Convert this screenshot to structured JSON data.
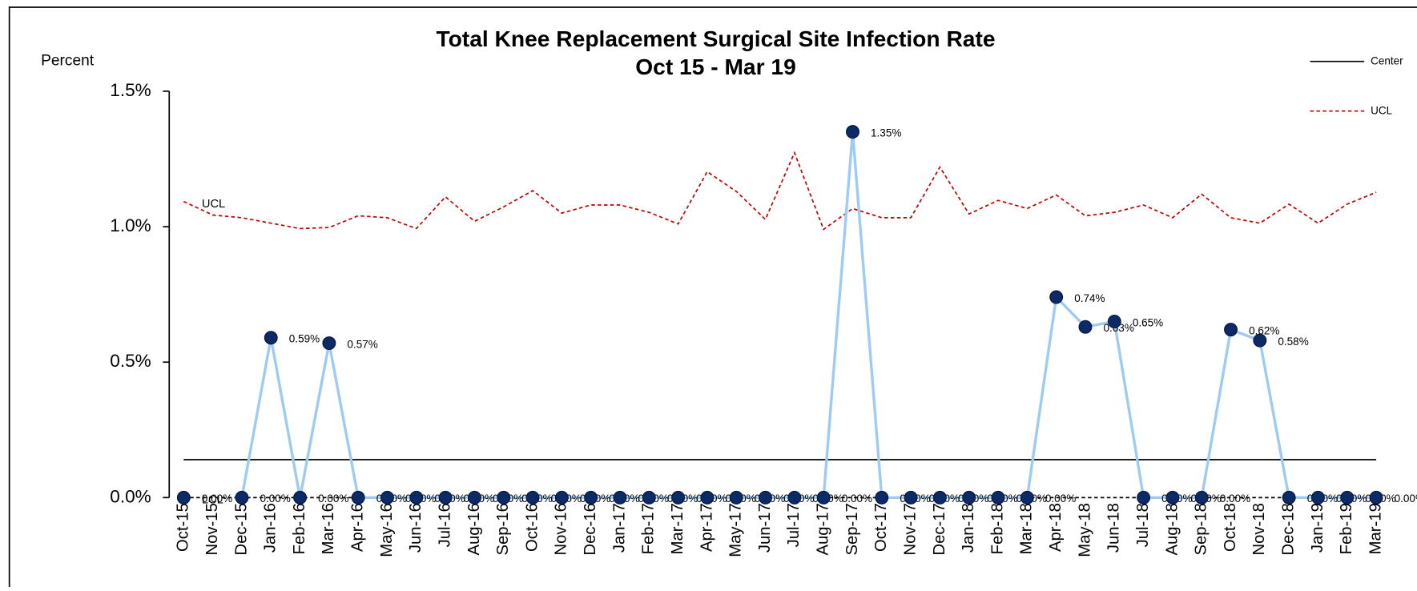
{
  "chart_data": {
    "type": "line",
    "title": "Total Knee Replacement Surgical Site Infection Rate",
    "subtitle": "Oct 15 - Mar 19",
    "ylabel": "Percent",
    "categories": [
      "Oct-15",
      "Nov-15",
      "Dec-15",
      "Jan-16",
      "Feb-16",
      "Mar-16",
      "Apr-16",
      "May-16",
      "Jun-16",
      "Jul-16",
      "Aug-16",
      "Sep-16",
      "Oct-16",
      "Nov-16",
      "Dec-16",
      "Jan-17",
      "Feb-17",
      "Mar-17",
      "Apr-17",
      "May-17",
      "Jun-17",
      "Jul-17",
      "Aug-17",
      "Sep-17",
      "Oct-17",
      "Nov-17",
      "Dec-17",
      "Jan-18",
      "Feb-18",
      "Mar-18",
      "Apr-18",
      "May-18",
      "Jun-18",
      "Jul-18",
      "Aug-18",
      "Sep-18",
      "Oct-18",
      "Nov-18",
      "Dec-18",
      "Jan-19",
      "Feb-19",
      "Mar-19"
    ],
    "values": [
      0,
      null,
      0,
      0.59,
      0,
      0.57,
      0,
      0,
      0,
      0,
      0,
      0,
      0,
      0,
      0,
      0,
      0,
      0,
      0,
      0,
      0,
      0,
      0,
      1.35,
      0,
      0,
      0,
      0,
      0,
      0,
      0.74,
      0.63,
      0.65,
      0,
      0,
      0,
      0.62,
      0.58,
      0,
      0,
      0,
      0
    ],
    "value_labels": [
      "0.00%",
      null,
      "0.00%",
      "0.59%",
      "0.00%",
      "0.57%",
      "0.00%",
      "0.00%",
      "0.00%",
      "0.00%",
      "0.00%",
      "0.00%",
      "0.00%",
      "0.00%",
      "0.00%",
      "0.00%",
      "0.00%",
      "0.00%",
      "0.00%",
      "0.00%",
      "0.00%",
      "0.00%",
      "0.00%",
      "1.35%",
      "0.00%",
      "0.00%",
      "0.00%",
      "0.00%",
      "0.00%",
      "0.00%",
      "0.74%",
      "0.63%",
      "0.65%",
      "0.00%",
      "0.00%",
      "0.00%",
      "0.62%",
      "0.58%",
      "0.00%",
      "0.00%",
      "0.00%",
      "0.00%"
    ],
    "color": "#9dcbf3",
    "marker_color": "#0b2a66",
    "series": [
      {
        "name": "Center",
        "color": "#000000",
        "dashed": false,
        "legend": true,
        "start_label": false,
        "values": [
          0.14,
          0.14,
          0.14,
          0.14,
          0.14,
          0.14,
          0.14,
          0.14,
          0.14,
          0.14,
          0.14,
          0.14,
          0.14,
          0.14,
          0.14,
          0.14,
          0.14,
          0.14,
          0.14,
          0.14,
          0.14,
          0.14,
          0.14,
          0.14,
          0.14,
          0.14,
          0.14,
          0.14,
          0.14,
          0.14,
          0.14,
          0.14,
          0.14,
          0.14,
          0.14,
          0.14,
          0.14,
          0.14,
          0.14,
          0.14,
          0.14,
          0.14
        ]
      },
      {
        "name": "UCL",
        "color": "#c00000",
        "dashed": true,
        "legend": true,
        "start_label": true,
        "values": [
          1.093,
          1.043,
          1.033,
          1.013,
          0.993,
          0.997,
          1.04,
          1.033,
          0.993,
          1.11,
          1.02,
          1.073,
          1.133,
          1.05,
          1.08,
          1.08,
          1.053,
          1.01,
          1.203,
          1.13,
          1.027,
          1.273,
          0.99,
          1.067,
          1.033,
          1.033,
          1.22,
          1.047,
          1.097,
          1.067,
          1.117,
          1.04,
          1.053,
          1.08,
          1.033,
          1.12,
          1.033,
          1.013,
          1.083,
          1.013,
          1.083,
          1.127
        ]
      },
      {
        "name": "LCL",
        "color": "#000000",
        "dashed": true,
        "legend": false,
        "start_label": true,
        "values": [
          0,
          0,
          0,
          0,
          0,
          0,
          0,
          0,
          0,
          0,
          0,
          0,
          0,
          0,
          0,
          0,
          0,
          0,
          0,
          0,
          0,
          0,
          0,
          0,
          0,
          0,
          0,
          0,
          0,
          0,
          0,
          0,
          0,
          0,
          0,
          0,
          0,
          0,
          0,
          0,
          0,
          0
        ]
      }
    ],
    "ylim": [
      0,
      1.5
    ],
    "yticks": [
      {
        "value": 0,
        "label": "0.0%"
      },
      {
        "value": 0.5,
        "label": "0.5%"
      },
      {
        "value": 1,
        "label": "1.0%"
      },
      {
        "value": 1.5,
        "label": "1.5%"
      }
    ],
    "legend": "top-right"
  }
}
